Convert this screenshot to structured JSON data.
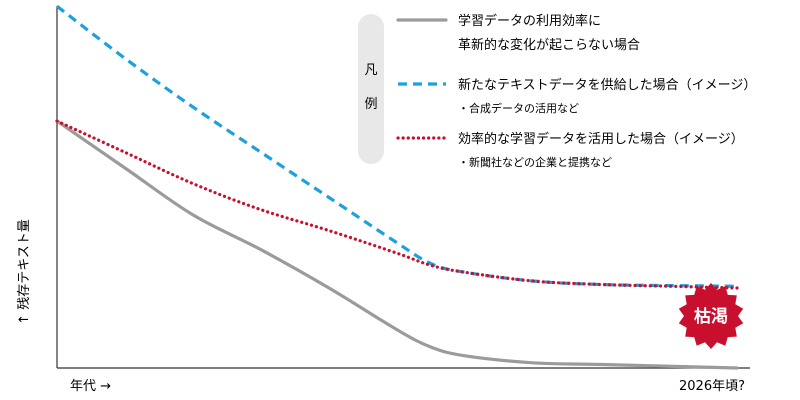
{
  "colors": {
    "gray": "#9b9b9b",
    "blue": "#1da1dc",
    "red": "#c8102e",
    "axis": "#333333",
    "legend_pill": "#e8e8e8",
    "burst": "#c8102e"
  },
  "chart_data": {
    "type": "line",
    "xlabel": "年代 →",
    "ylabel": "↑ 残存テキスト量",
    "x_end_label": "2026年頃?",
    "xlim": [
      0,
      100
    ],
    "ylim": [
      0,
      100
    ],
    "legend_title": "凡例",
    "legend_position": "top-right",
    "grid": false,
    "annotation": "枯渇",
    "series": [
      {
        "key": "gray",
        "name_lines": [
          "学習データの利用効率に",
          "革新的な変化が起こらない場合"
        ],
        "sub": "",
        "style": "solid",
        "points": [
          [
            0,
            71
          ],
          [
            10,
            57.5
          ],
          [
            20,
            44
          ],
          [
            30,
            34
          ],
          [
            40,
            23
          ],
          [
            50,
            11
          ],
          [
            55,
            6
          ],
          [
            60,
            3.5
          ],
          [
            70,
            1.5
          ],
          [
            80,
            1
          ],
          [
            100,
            0
          ]
        ]
      },
      {
        "key": "blue",
        "name_lines": [
          "新たなテキストデータを供給した場合（イメージ）"
        ],
        "sub": "・合成データの活用など",
        "style": "dashed",
        "points": [
          [
            0,
            104
          ],
          [
            10,
            89
          ],
          [
            20,
            75
          ],
          [
            30,
            62
          ],
          [
            40,
            49
          ],
          [
            50,
            36
          ],
          [
            55,
            30
          ],
          [
            60,
            27.5
          ],
          [
            70,
            25
          ],
          [
            80,
            24
          ],
          [
            90,
            23.7
          ],
          [
            100,
            23.5
          ]
        ]
      },
      {
        "key": "red",
        "name_lines": [
          "効率的な学習データを活用した場合（イメージ）"
        ],
        "sub": "・新聞社などの企業と提携など",
        "style": "dotted",
        "points": [
          [
            0,
            71
          ],
          [
            10,
            62
          ],
          [
            20,
            53
          ],
          [
            30,
            45.5
          ],
          [
            40,
            39.5
          ],
          [
            50,
            33
          ],
          [
            55,
            29.5
          ],
          [
            60,
            27.5
          ],
          [
            70,
            25
          ],
          [
            80,
            24
          ],
          [
            90,
            23.5
          ],
          [
            100,
            23
          ]
        ]
      }
    ]
  }
}
